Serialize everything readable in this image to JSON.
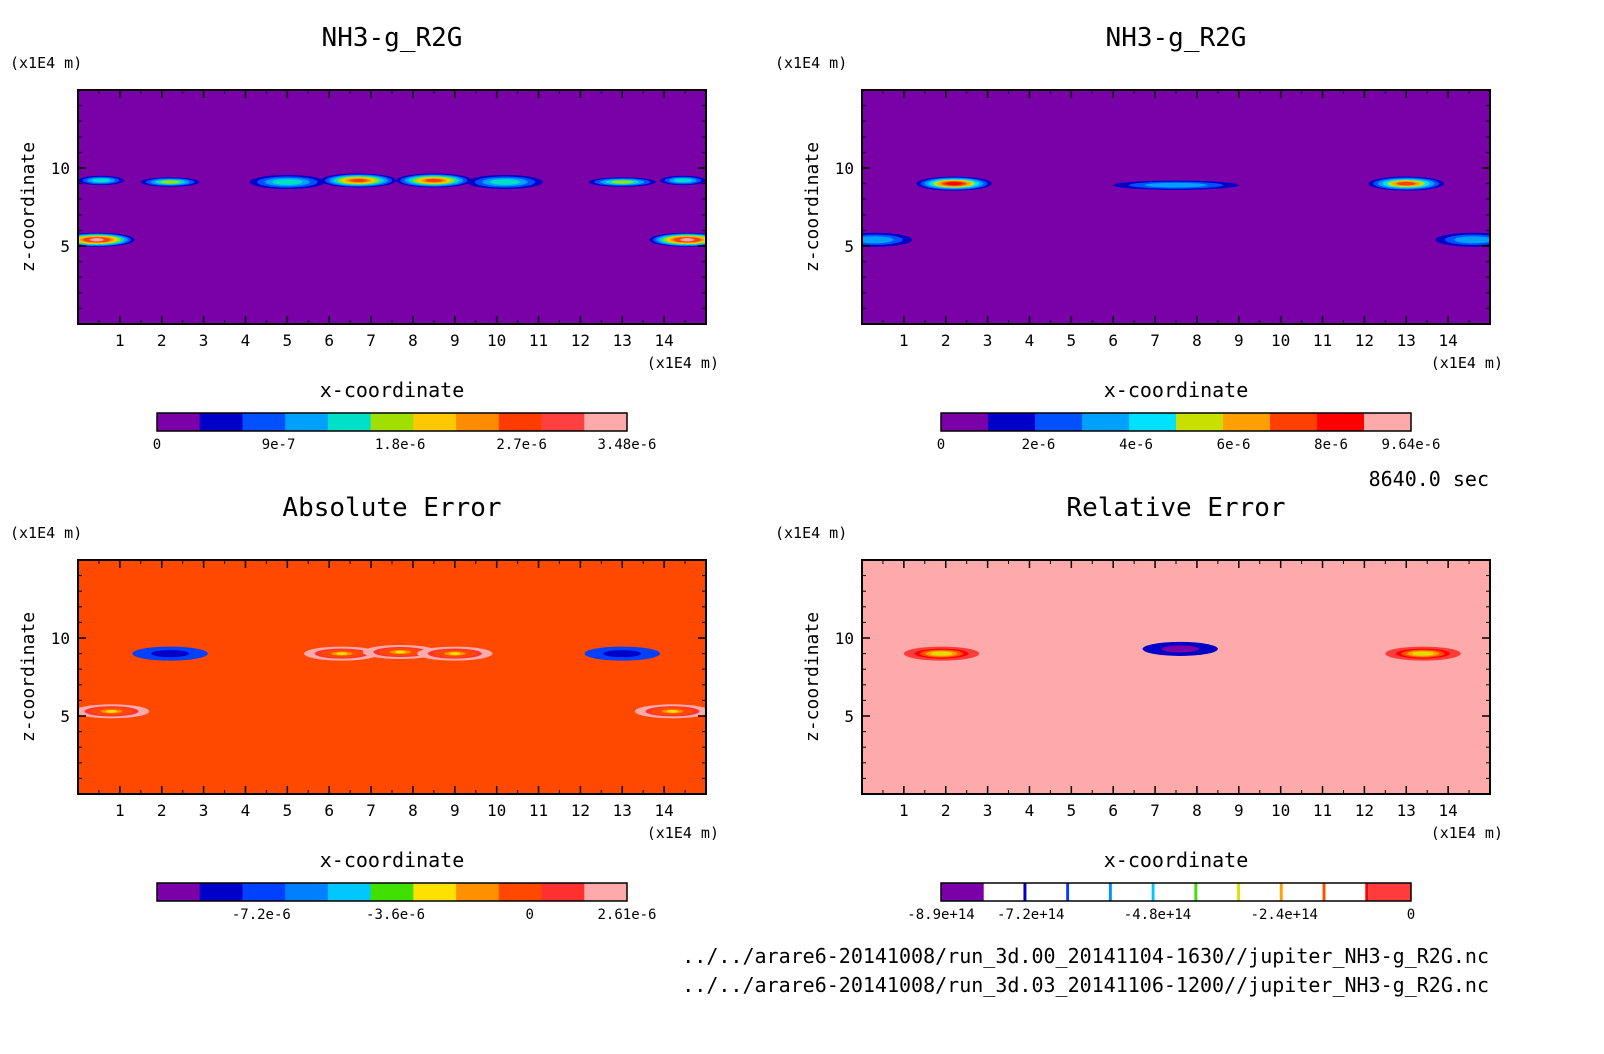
{
  "figure": {
    "time_label": "8640.0 sec",
    "files": [
      "../../arare6-20141008/run_3d.00_20141104-1630//jupiter_NH3-g_R2G.nc",
      "../../arare6-20141008/run_3d.03_20141106-1200//jupiter_NH3-g_R2G.nc"
    ]
  },
  "chart_data": [
    {
      "type": "heatmap",
      "title": "NH3-g_R2G",
      "xlabel": "x-coordinate",
      "ylabel": "z-coordinate",
      "x_unit": "(x1E4 m)",
      "y_unit": "(x1E4 m)",
      "xlim": [
        0,
        15
      ],
      "ylim": [
        0,
        15
      ],
      "xticks": [
        "1",
        "2",
        "3",
        "4",
        "5",
        "6",
        "7",
        "8",
        "9",
        "10",
        "11",
        "12",
        "13",
        "14"
      ],
      "yticks": [
        "5",
        "10"
      ],
      "background": "#7a00a8",
      "colorbar": {
        "range": [
          0,
          3.48e-06
        ],
        "labels": [
          "0",
          "9e-7",
          "1.8e-6",
          "2.7e-6",
          "3.48e-6"
        ],
        "colors": [
          "#7a00a8",
          "#0000c8",
          "#0050ff",
          "#00a0ff",
          "#00e0c8",
          "#a0e000",
          "#ffc800",
          "#ff8c00",
          "#ff3c00",
          "#ff4040",
          "#ffaaaa"
        ]
      },
      "features": [
        {
          "kind": "band",
          "z": 9.2,
          "x0": 0,
          "x1": 1.1,
          "level": 0.4
        },
        {
          "kind": "band",
          "z": 9.1,
          "x0": 1.5,
          "x1": 2.9,
          "level": 0.45
        },
        {
          "kind": "blob",
          "x": 5.0,
          "z": 9.1,
          "level": 0.35
        },
        {
          "kind": "blob",
          "x": 6.7,
          "z": 9.2,
          "level": 0.75
        },
        {
          "kind": "blob",
          "x": 8.5,
          "z": 9.2,
          "level": 0.75
        },
        {
          "kind": "blob",
          "x": 10.2,
          "z": 9.1,
          "level": 0.35
        },
        {
          "kind": "band",
          "z": 9.1,
          "x0": 12.2,
          "x1": 13.8,
          "level": 0.45
        },
        {
          "kind": "band",
          "z": 9.2,
          "x0": 13.9,
          "x1": 15,
          "level": 0.4
        },
        {
          "kind": "blob",
          "x": 0.45,
          "z": 5.4,
          "level": 1.0
        },
        {
          "kind": "blob",
          "x": 14.55,
          "z": 5.4,
          "level": 1.0
        }
      ]
    },
    {
      "type": "heatmap",
      "title": "NH3-g_R2G",
      "xlabel": "x-coordinate",
      "ylabel": "z-coordinate",
      "x_unit": "(x1E4 m)",
      "y_unit": "(x1E4 m)",
      "xlim": [
        0,
        15
      ],
      "ylim": [
        0,
        15
      ],
      "xticks": [
        "1",
        "2",
        "3",
        "4",
        "5",
        "6",
        "7",
        "8",
        "9",
        "10",
        "11",
        "12",
        "13",
        "14"
      ],
      "yticks": [
        "5",
        "10"
      ],
      "background": "#7a00a8",
      "colorbar": {
        "range": [
          0,
          9.64e-06
        ],
        "labels": [
          "0",
          "2e-6",
          "4e-6",
          "6e-6",
          "8e-6",
          "9.64e-6"
        ],
        "colors": [
          "#7a00a8",
          "#0000c8",
          "#0050ff",
          "#00a0ff",
          "#00e0ff",
          "#c8e000",
          "#ffa000",
          "#ff4000",
          "#ff0000",
          "#ffaaaa"
        ]
      },
      "features": [
        {
          "kind": "blob",
          "x": 2.2,
          "z": 9.0,
          "level": 0.85
        },
        {
          "kind": "band",
          "z": 8.9,
          "x0": 6.0,
          "x1": 9.0,
          "level": 0.3
        },
        {
          "kind": "blob",
          "x": 13.0,
          "z": 9.0,
          "level": 0.8
        },
        {
          "kind": "blob",
          "x": 0.3,
          "z": 5.4,
          "level": 0.3
        },
        {
          "kind": "blob",
          "x": 14.6,
          "z": 5.4,
          "level": 0.3
        }
      ]
    },
    {
      "type": "heatmap",
      "title": "Absolute Error",
      "xlabel": "x-coordinate",
      "ylabel": "z-coordinate",
      "x_unit": "(x1E4 m)",
      "y_unit": "(x1E4 m)",
      "xlim": [
        0,
        15
      ],
      "ylim": [
        0,
        15
      ],
      "xticks": [
        "1",
        "2",
        "3",
        "4",
        "5",
        "6",
        "7",
        "8",
        "9",
        "10",
        "11",
        "12",
        "13",
        "14"
      ],
      "yticks": [
        "5",
        "10"
      ],
      "background": "#ff4800",
      "colorbar": {
        "range": [
          -1e-05,
          2.61e-06
        ],
        "labels": [
          "-7.2e-6",
          "-3.6e-6",
          "0",
          "2.61e-6"
        ],
        "colors": [
          "#7a00a8",
          "#0000c8",
          "#0040ff",
          "#0080ff",
          "#00c8ff",
          "#40e000",
          "#ffe000",
          "#ff9000",
          "#ff4800",
          "#ff3030",
          "#ffaaaa"
        ]
      },
      "features": [
        {
          "kind": "blob",
          "x": 2.2,
          "z": 9.0,
          "level": 0.1
        },
        {
          "kind": "blob",
          "x": 13.0,
          "z": 9.0,
          "level": 0.1
        },
        {
          "kind": "blob",
          "x": 6.3,
          "z": 9.0,
          "level": 0.6
        },
        {
          "kind": "blob",
          "x": 7.7,
          "z": 9.1,
          "level": 0.6
        },
        {
          "kind": "blob",
          "x": 9.0,
          "z": 9.0,
          "level": 0.6
        },
        {
          "kind": "blob",
          "x": 0.8,
          "z": 5.3,
          "level": 0.6
        },
        {
          "kind": "blob",
          "x": 14.2,
          "z": 5.3,
          "level": 0.6
        }
      ]
    },
    {
      "type": "heatmap",
      "title": "Relative Error",
      "xlabel": "x-coordinate",
      "ylabel": "z-coordinate",
      "x_unit": "(x1E4 m)",
      "y_unit": "(x1E4 m)",
      "xlim": [
        0,
        15
      ],
      "ylim": [
        0,
        15
      ],
      "xticks": [
        "1",
        "2",
        "3",
        "4",
        "5",
        "6",
        "7",
        "8",
        "9",
        "10",
        "11",
        "12",
        "13",
        "14"
      ],
      "yticks": [
        "5",
        "10"
      ],
      "background": "#ffaaaa",
      "colorbar": {
        "range": [
          -890000000000000.0,
          0
        ],
        "labels": [
          "-8.9e+14",
          "-7.2e+14",
          "-4.8e+14",
          "-2.4e+14",
          "0"
        ],
        "colors": [
          "#7a00a8",
          "#0000c8",
          "#0040ff",
          "#0090ff",
          "#00c8ff",
          "#40e000",
          "#e0e000",
          "#ffa000",
          "#ff5000",
          "#ff0000",
          "#ff3c3c"
        ],
        "open": true
      },
      "features": [
        {
          "kind": "blob",
          "x": 1.9,
          "z": 9.0,
          "level": 0.55
        },
        {
          "kind": "blob",
          "x": 13.4,
          "z": 9.0,
          "level": 0.55
        },
        {
          "kind": "blob",
          "x": 7.6,
          "z": 9.3,
          "level": 0.0
        }
      ]
    }
  ]
}
